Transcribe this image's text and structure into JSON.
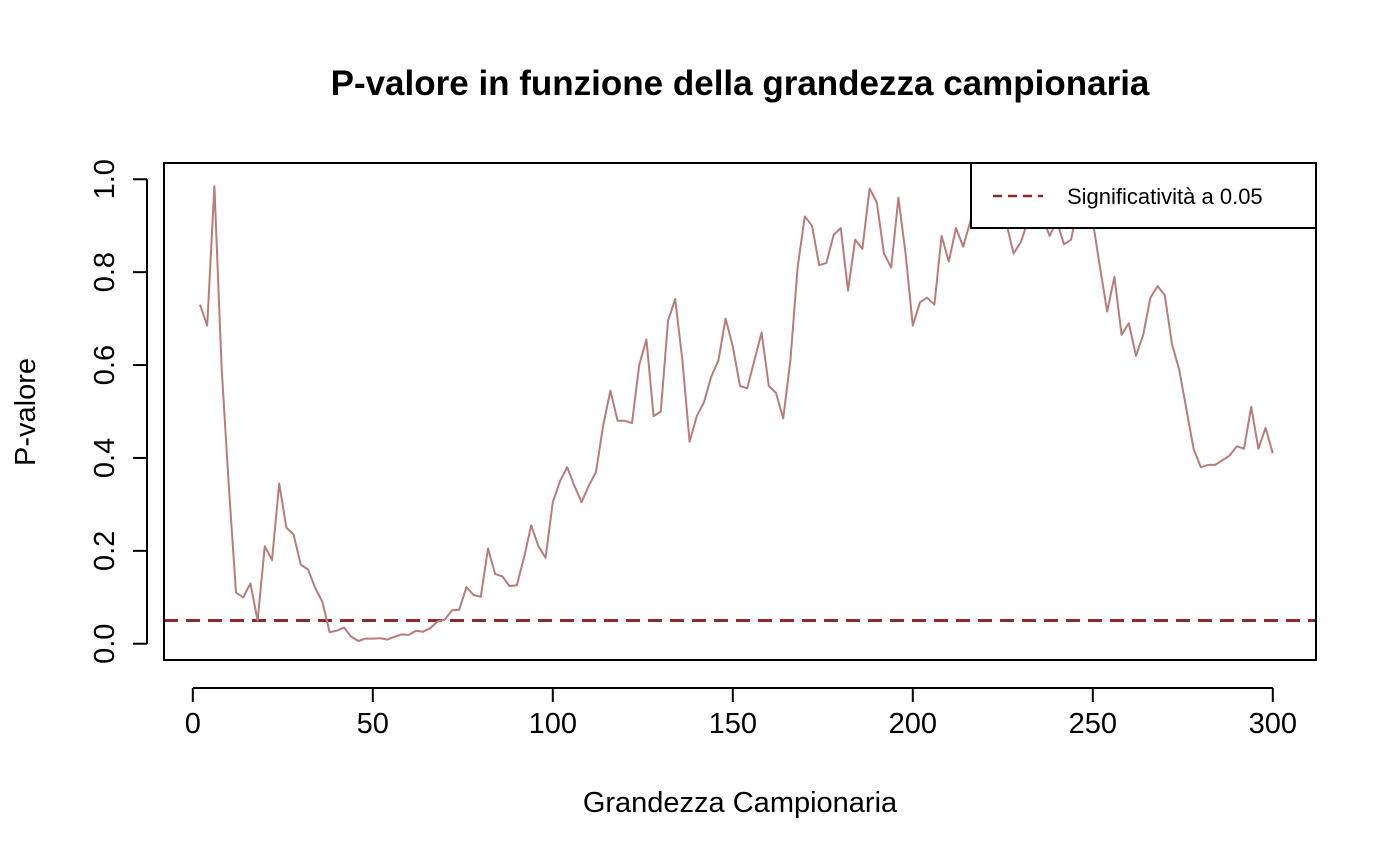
{
  "chart_data": {
    "type": "line",
    "title": "P-valore in funzione della grandezza campionaria",
    "xlabel": "Grandezza Campionaria",
    "ylabel": "P-valore",
    "xlim": [
      -8,
      312
    ],
    "ylim": [
      -0.035,
      1.035
    ],
    "xticks": [
      0,
      50,
      100,
      150,
      200,
      250,
      300
    ],
    "yticks": [
      0.0,
      0.2,
      0.4,
      0.6,
      0.8,
      1.0
    ],
    "xtick_labels": [
      "0",
      "50",
      "100",
      "150",
      "200",
      "250",
      "300"
    ],
    "ytick_labels": [
      "0.0",
      "0.2",
      "0.4",
      "0.6",
      "0.8",
      "1.0"
    ],
    "series": [
      {
        "color": "#b87c7a",
        "x": [
          2,
          4,
          6,
          8,
          10,
          12,
          14,
          16,
          18,
          20,
          22,
          24,
          26,
          28,
          30,
          32,
          34,
          36,
          38,
          40,
          42,
          44,
          46,
          48,
          50,
          52,
          54,
          56,
          58,
          60,
          62,
          64,
          66,
          68,
          70,
          72,
          74,
          76,
          78,
          80,
          82,
          84,
          86,
          88,
          90,
          92,
          94,
          96,
          98,
          100,
          102,
          104,
          106,
          108,
          110,
          112,
          114,
          116,
          118,
          120,
          122,
          124,
          126,
          128,
          130,
          132,
          134,
          136,
          138,
          140,
          142,
          144,
          146,
          148,
          150,
          152,
          154,
          156,
          158,
          160,
          162,
          164,
          166,
          168,
          170,
          172,
          174,
          176,
          178,
          180,
          182,
          184,
          186,
          188,
          190,
          192,
          194,
          196,
          198,
          200,
          202,
          204,
          206,
          208,
          210,
          212,
          214,
          216,
          218,
          220,
          222,
          224,
          226,
          228,
          230,
          232,
          234,
          236,
          238,
          240,
          242,
          244,
          246,
          248,
          250,
          252,
          254,
          256,
          258,
          260,
          262,
          264,
          266,
          268,
          270,
          272,
          274,
          276,
          278,
          280,
          282,
          284,
          286,
          288,
          290,
          292,
          294,
          296,
          298,
          300
        ],
        "y": [
          0.73,
          0.685,
          0.985,
          0.595,
          0.34,
          0.11,
          0.1,
          0.13,
          0.05,
          0.21,
          0.18,
          0.345,
          0.25,
          0.235,
          0.17,
          0.16,
          0.12,
          0.09,
          0.025,
          0.028,
          0.035,
          0.015,
          0.006,
          0.011,
          0.011,
          0.012,
          0.009,
          0.015,
          0.02,
          0.019,
          0.028,
          0.026,
          0.034,
          0.048,
          0.052,
          0.072,
          0.073,
          0.122,
          0.105,
          0.101,
          0.205,
          0.15,
          0.145,
          0.124,
          0.126,
          0.185,
          0.255,
          0.21,
          0.185,
          0.305,
          0.35,
          0.38,
          0.34,
          0.305,
          0.34,
          0.37,
          0.47,
          0.545,
          0.48,
          0.48,
          0.475,
          0.6,
          0.655,
          0.49,
          0.5,
          0.695,
          0.742,
          0.61,
          0.435,
          0.49,
          0.52,
          0.575,
          0.61,
          0.7,
          0.64,
          0.555,
          0.55,
          0.61,
          0.67,
          0.555,
          0.54,
          0.485,
          0.61,
          0.81,
          0.92,
          0.9,
          0.815,
          0.82,
          0.88,
          0.895,
          0.76,
          0.87,
          0.85,
          0.98,
          0.95,
          0.84,
          0.81,
          0.96,
          0.84,
          0.685,
          0.735,
          0.745,
          0.73,
          0.878,
          0.823,
          0.895,
          0.855,
          0.91,
          0.96,
          0.985,
          0.975,
          0.97,
          0.905,
          0.84,
          0.865,
          0.91,
          0.915,
          0.92,
          0.878,
          0.91,
          0.86,
          0.87,
          0.955,
          0.97,
          0.91,
          0.81,
          0.715,
          0.79,
          0.665,
          0.69,
          0.62,
          0.665,
          0.745,
          0.77,
          0.75,
          0.645,
          0.59,
          0.505,
          0.42,
          0.38,
          0.385,
          0.385,
          0.395,
          0.405,
          0.425,
          0.42,
          0.51,
          0.42,
          0.465,
          0.41
        ]
      }
    ],
    "hline": {
      "y": 0.05,
      "color": "#8b2a2a",
      "style": "dashed"
    },
    "legend": {
      "position": "top-right",
      "entries": [
        {
          "label": "Significatività a 0.05",
          "color": "#8b2a2a",
          "style": "dashed"
        }
      ]
    },
    "grid": false
  }
}
